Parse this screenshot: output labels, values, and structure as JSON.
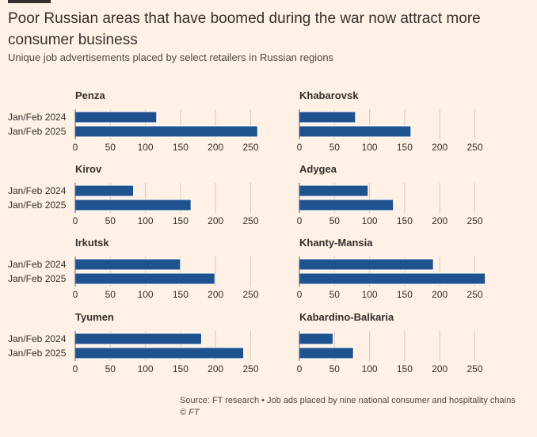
{
  "header": {
    "title": "Poor Russian areas that have boomed during the war now attract more consumer business",
    "subtitle": "Unique job advertisements placed by select retailers in Russian regions"
  },
  "footer": {
    "source": "Source: FT research • Job ads placed by nine national consumer and hospitality chains",
    "credit": "© FT"
  },
  "colors": {
    "bar": "#1f5390",
    "grid": "#d4c9be",
    "text": "#33302e"
  },
  "chart_data": [
    {
      "type": "bar",
      "orientation": "horizontal",
      "title": "Penza",
      "categories": [
        "Jan/Feb 2024",
        "Jan/Feb 2025"
      ],
      "values": [
        116,
        260
      ],
      "xlim": [
        0,
        260
      ],
      "xticks": [
        0,
        50,
        100,
        150,
        200,
        250
      ]
    },
    {
      "type": "bar",
      "orientation": "horizontal",
      "title": "Khabarovsk",
      "categories": [
        "Jan/Feb 2024",
        "Jan/Feb 2025"
      ],
      "values": [
        80,
        159
      ],
      "xlim": [
        0,
        260
      ],
      "xticks": [
        0,
        50,
        100,
        150,
        200,
        250
      ]
    },
    {
      "type": "bar",
      "orientation": "horizontal",
      "title": "Kirov",
      "categories": [
        "Jan/Feb 2024",
        "Jan/Feb 2025"
      ],
      "values": [
        83,
        165
      ],
      "xlim": [
        0,
        260
      ],
      "xticks": [
        0,
        50,
        100,
        150,
        200,
        250
      ]
    },
    {
      "type": "bar",
      "orientation": "horizontal",
      "title": "Adygea",
      "categories": [
        "Jan/Feb 2024",
        "Jan/Feb 2025"
      ],
      "values": [
        98,
        134
      ],
      "xlim": [
        0,
        260
      ],
      "xticks": [
        0,
        50,
        100,
        150,
        200,
        250
      ]
    },
    {
      "type": "bar",
      "orientation": "horizontal",
      "title": "Irkutsk",
      "categories": [
        "Jan/Feb 2024",
        "Jan/Feb 2025"
      ],
      "values": [
        150,
        199
      ],
      "xlim": [
        0,
        260
      ],
      "xticks": [
        0,
        50,
        100,
        150,
        200,
        250
      ]
    },
    {
      "type": "bar",
      "orientation": "horizontal",
      "title": "Khanty-Mansia",
      "categories": [
        "Jan/Feb 2024",
        "Jan/Feb 2025"
      ],
      "values": [
        191,
        265
      ],
      "xlim": [
        0,
        260
      ],
      "xticks": [
        0,
        50,
        100,
        150,
        200,
        250
      ]
    },
    {
      "type": "bar",
      "orientation": "horizontal",
      "title": "Tyumen",
      "categories": [
        "Jan/Feb 2024",
        "Jan/Feb 2025"
      ],
      "values": [
        180,
        240
      ],
      "xlim": [
        0,
        260
      ],
      "xticks": [
        0,
        50,
        100,
        150,
        200,
        250
      ]
    },
    {
      "type": "bar",
      "orientation": "horizontal",
      "title": "Kabardino-Balkaria",
      "categories": [
        "Jan/Feb 2024",
        "Jan/Feb 2025"
      ],
      "values": [
        48,
        77
      ],
      "xlim": [
        0,
        260
      ],
      "xticks": [
        0,
        50,
        100,
        150,
        200,
        250
      ]
    }
  ]
}
